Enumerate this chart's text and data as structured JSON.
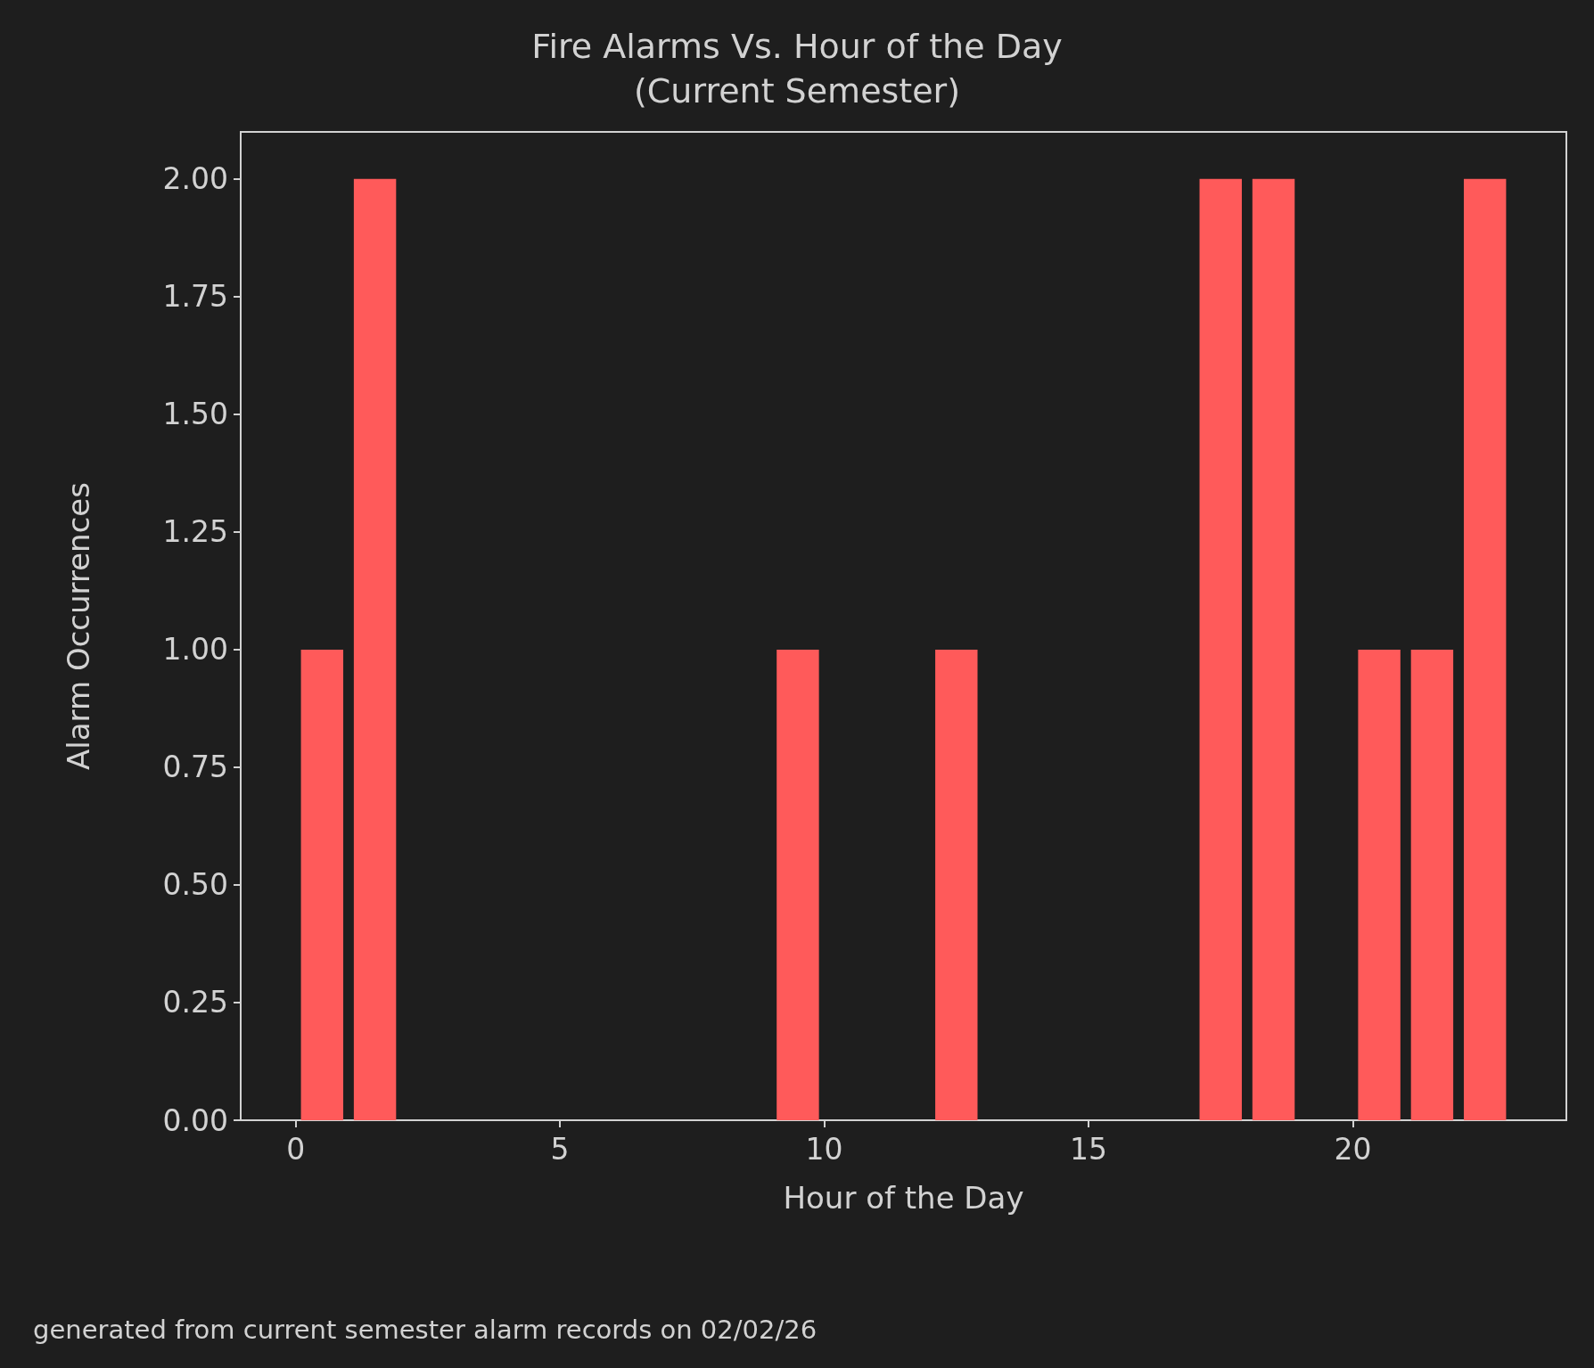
{
  "chart_data": {
    "type": "histogram",
    "title": "Fire Alarms Vs. Hour of the Day",
    "subtitle": "(Current Semester)",
    "xlabel": "Hour of the Day",
    "ylabel": "Alarm Occurrences",
    "annotations": [
      "generated from current semester alarm records on 02/02/26"
    ],
    "bins": [
      0,
      1,
      2,
      3,
      4,
      5,
      6,
      7,
      8,
      9,
      10,
      11,
      12,
      13,
      14,
      15,
      16,
      17,
      18,
      19,
      20,
      21,
      22,
      23
    ],
    "values": [
      1,
      2,
      0,
      0,
      0,
      0,
      0,
      0,
      0,
      1,
      0,
      0,
      1,
      0,
      0,
      0,
      0,
      2,
      2,
      0,
      1,
      1,
      2
    ],
    "color": "#ff5a5a",
    "xlim": [
      -1.04,
      24.04
    ],
    "xticks": [
      0,
      5,
      10,
      15,
      20
    ],
    "ylim": [
      0,
      2.1
    ],
    "yticks": [
      {
        "value": 0,
        "label": "0.00"
      },
      {
        "value": 0.25,
        "label": "0.25"
      },
      {
        "value": 0.5,
        "label": "0.50"
      },
      {
        "value": 0.75,
        "label": "0.75"
      },
      {
        "value": 1,
        "label": "1.00"
      },
      {
        "value": 1.25,
        "label": "1.25"
      },
      {
        "value": 1.5,
        "label": "1.50"
      },
      {
        "value": 1.75,
        "label": "1.75"
      },
      {
        "value": 2,
        "label": "2.00"
      }
    ],
    "grid": false
  }
}
